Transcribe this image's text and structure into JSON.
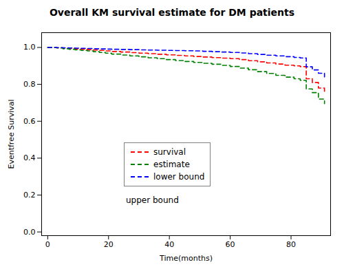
{
  "chart_data": {
    "type": "step",
    "title": "Overall KM survival estimate for DM patients",
    "xlabel": "Time(months)",
    "ylabel": "Eventfree Survival",
    "x": [
      0,
      3,
      5,
      7,
      9,
      11,
      13,
      15,
      17,
      19,
      21,
      24,
      27,
      30,
      33,
      36,
      39,
      42,
      45,
      48,
      51,
      54,
      57,
      60,
      63,
      66,
      69,
      72,
      75,
      78,
      81,
      83,
      85,
      87,
      89,
      91
    ],
    "series": [
      {
        "name": "survival",
        "color": "red",
        "values": [
          1.0,
          0.998,
          0.996,
          0.994,
          0.992,
          0.99,
          0.988,
          0.986,
          0.984,
          0.981,
          0.978,
          0.975,
          0.972,
          0.969,
          0.966,
          0.963,
          0.96,
          0.957,
          0.954,
          0.951,
          0.948,
          0.945,
          0.942,
          0.939,
          0.934,
          0.928,
          0.922,
          0.916,
          0.91,
          0.904,
          0.9,
          0.896,
          0.83,
          0.81,
          0.78,
          0.75
        ]
      },
      {
        "name": "estimate",
        "color": "green",
        "values": [
          1.0,
          0.997,
          0.993,
          0.99,
          0.987,
          0.984,
          0.981,
          0.977,
          0.973,
          0.969,
          0.964,
          0.959,
          0.954,
          0.949,
          0.944,
          0.939,
          0.934,
          0.929,
          0.924,
          0.919,
          0.914,
          0.909,
          0.903,
          0.897,
          0.888,
          0.879,
          0.869,
          0.859,
          0.849,
          0.839,
          0.83,
          0.822,
          0.775,
          0.755,
          0.72,
          0.695
        ]
      },
      {
        "name": "lower bound",
        "color": "blue",
        "values": [
          1.0,
          0.999,
          0.998,
          0.997,
          0.996,
          0.995,
          0.994,
          0.993,
          0.992,
          0.991,
          0.99,
          0.989,
          0.988,
          0.987,
          0.986,
          0.985,
          0.984,
          0.983,
          0.982,
          0.981,
          0.979,
          0.977,
          0.975,
          0.973,
          0.97,
          0.966,
          0.962,
          0.958,
          0.954,
          0.95,
          0.946,
          0.943,
          0.895,
          0.878,
          0.86,
          0.84
        ]
      }
    ],
    "line_style": "dashed",
    "xlim": [
      -2,
      93
    ],
    "ylim": [
      -0.02,
      1.08
    ],
    "xticks": [
      0,
      20,
      40,
      60,
      80
    ],
    "yticks": [
      {
        "value": 0.0,
        "label": "0.0"
      },
      0.2,
      0.4,
      0.6,
      0.8,
      {
        "value": 1.0,
        "label": "1.0"
      }
    ],
    "grid": false,
    "annotations": [
      {
        "text": "upper bound"
      }
    ]
  }
}
